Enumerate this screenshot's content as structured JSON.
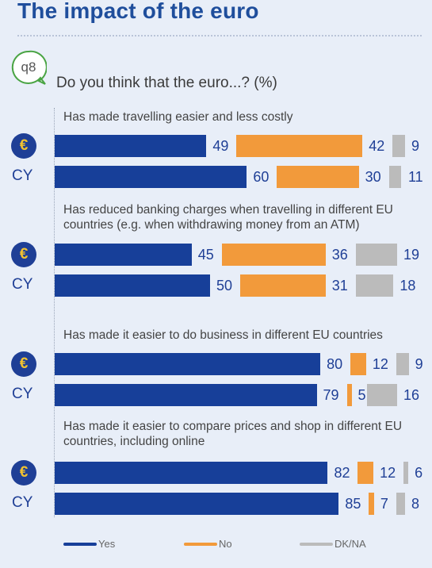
{
  "header": {
    "title": "The impact of the euro"
  },
  "question": {
    "code": "q8",
    "text": "Do you think that the euro...? (%)"
  },
  "colors": {
    "yes": "#173f99",
    "no": "#f29a3b",
    "dk": "#bbbbbb",
    "title": "#1f4e9c"
  },
  "icons": {
    "euro": "euro-coin-icon",
    "question": "speech-bubble-icon"
  },
  "chart_data": {
    "type": "bar",
    "orientation": "horizontal",
    "stacked": true,
    "xlim": [
      0,
      100
    ],
    "legend": [
      "Yes",
      "No",
      "DK/NA"
    ],
    "legend_position": "bottom",
    "groups": [
      {
        "label": "Has made travelling easier and less costly",
        "rows": [
          {
            "label": "€",
            "values": [
              49,
              42,
              9
            ]
          },
          {
            "label": "CY",
            "values": [
              60,
              30,
              11
            ]
          }
        ]
      },
      {
        "label": "Has reduced banking charges when travelling in different EU countries (e.g. when withdrawing money from an ATM)",
        "rows": [
          {
            "label": "€",
            "values": [
              45,
              36,
              19
            ]
          },
          {
            "label": "CY",
            "values": [
              50,
              31,
              18
            ]
          }
        ]
      },
      {
        "label": "Has made it easier to do business in different EU countries",
        "rows": [
          {
            "label": "€",
            "values": [
              80,
              12,
              9
            ]
          },
          {
            "label": "CY",
            "values": [
              79,
              5,
              16
            ]
          }
        ]
      },
      {
        "label": "Has made it easier to compare prices and shop in different EU countries, including online",
        "rows": [
          {
            "label": "€",
            "values": [
              82,
              12,
              6
            ]
          },
          {
            "label": "CY",
            "values": [
              85,
              7,
              8
            ]
          }
        ]
      }
    ]
  }
}
